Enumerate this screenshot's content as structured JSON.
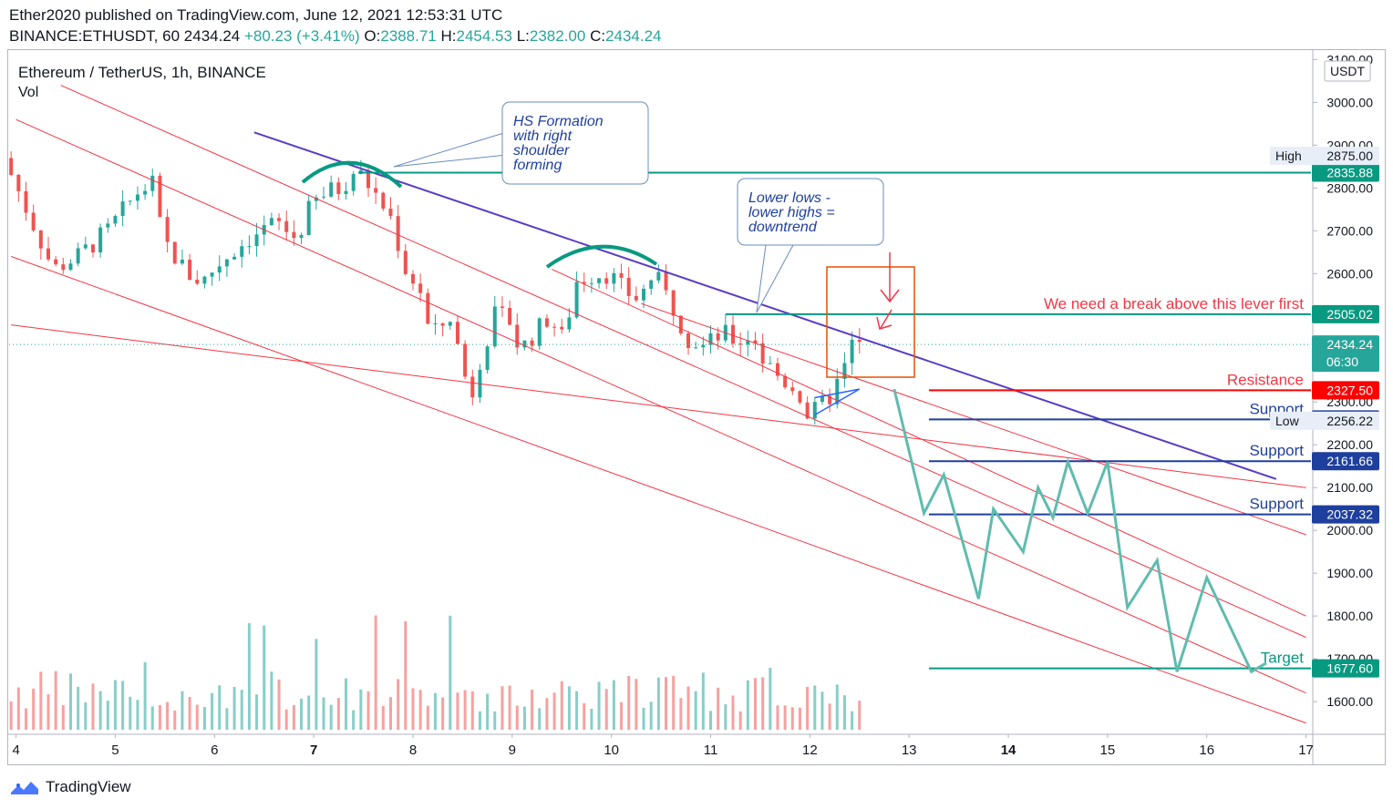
{
  "header": {
    "published": "Ether2020 published on TradingView.com, June 12, 2021 12:53:31 UTC",
    "symbol": "BINANCE:ETHUSDT, 60",
    "last": "2434.24",
    "change": "+80.23 (+3.41%)",
    "o_label": "O:",
    "o": "2388.71",
    "h_label": "H:",
    "h": "2454.53",
    "l_label": "L:",
    "l": "2382.00",
    "c_label": "C:",
    "c": "2434.24"
  },
  "legend": {
    "title": "Ethereum / TetherUS, 1h, BINANCE",
    "vol": "Vol"
  },
  "footer": {
    "brand": "TradingView"
  },
  "colors": {
    "up": "#26a69a",
    "down": "#ef5350",
    "trend": "#5b3cc4",
    "channel": "#f23645",
    "projection": "#5fbcae",
    "support": "#1e3f9e",
    "accent": "#089981"
  },
  "chart_data": {
    "type": "candlestick",
    "currency": "USDT",
    "x_ticks": [
      "4",
      "5",
      "6",
      "7",
      "8",
      "9",
      "10",
      "11",
      "12",
      "13",
      "14",
      "15",
      "16",
      "17"
    ],
    "x_tick_values": [
      4,
      5,
      6,
      7,
      8,
      9,
      10,
      11,
      12,
      13,
      14,
      15,
      16,
      17
    ],
    "y_ticks": [
      1600,
      1700,
      1800,
      1900,
      2000,
      2100,
      2200,
      2300,
      2400,
      2500,
      2600,
      2700,
      2800,
      2900,
      3000,
      3100
    ],
    "ylim": [
      1530,
      3120
    ],
    "xlim": [
      3.93,
      17.05
    ],
    "candle_path": [
      [
        3.95,
        2870
      ],
      [
        4.2,
        2740
      ],
      [
        4.45,
        2610
      ],
      [
        4.7,
        2640
      ],
      [
        5.0,
        2700
      ],
      [
        5.3,
        2790
      ],
      [
        5.45,
        2810
      ],
      [
        5.55,
        2680
      ],
      [
        5.8,
        2600
      ],
      [
        5.95,
        2580
      ],
      [
        6.1,
        2620
      ],
      [
        6.4,
        2680
      ],
      [
        6.7,
        2720
      ],
      [
        6.9,
        2680
      ],
      [
        7.05,
        2760
      ],
      [
        7.2,
        2790
      ],
      [
        7.35,
        2800
      ],
      [
        7.5,
        2845
      ],
      [
        7.65,
        2800
      ],
      [
        7.85,
        2730
      ],
      [
        8.0,
        2610
      ],
      [
        8.15,
        2560
      ],
      [
        8.25,
        2450
      ],
      [
        8.45,
        2500
      ],
      [
        8.6,
        2360
      ],
      [
        8.65,
        2300
      ],
      [
        8.75,
        2400
      ],
      [
        8.9,
        2500
      ],
      [
        9.05,
        2490
      ],
      [
        9.15,
        2420
      ],
      [
        9.3,
        2460
      ],
      [
        9.45,
        2500
      ],
      [
        9.6,
        2440
      ],
      [
        9.7,
        2580
      ],
      [
        9.9,
        2600
      ],
      [
        10.05,
        2600
      ],
      [
        10.2,
        2560
      ],
      [
        10.35,
        2540
      ],
      [
        10.5,
        2600
      ],
      [
        10.7,
        2520
      ],
      [
        10.85,
        2450
      ],
      [
        11.0,
        2430
      ],
      [
        11.2,
        2460
      ],
      [
        11.35,
        2440
      ],
      [
        11.5,
        2460
      ],
      [
        11.6,
        2400
      ],
      [
        11.8,
        2350
      ],
      [
        11.95,
        2330
      ],
      [
        12.05,
        2270
      ],
      [
        12.15,
        2280
      ],
      [
        12.3,
        2320
      ],
      [
        12.45,
        2390
      ],
      [
        12.5,
        2434
      ]
    ],
    "volume": {
      "max_label": "",
      "bars_seed": 7
    },
    "lines": [
      {
        "name": "downtrend",
        "kind": "trend",
        "points": [
          [
            6.4,
            2930
          ],
          [
            16.7,
            2120
          ]
        ]
      },
      {
        "name": "channel-top",
        "kind": "channel",
        "points": [
          [
            4.45,
            3040
          ],
          [
            17.0,
            1750
          ]
        ]
      },
      {
        "name": "channel-mid",
        "kind": "channel",
        "points": [
          [
            4.0,
            2960
          ],
          [
            17.0,
            1620
          ]
        ]
      },
      {
        "name": "channel-low",
        "kind": "channel",
        "points": [
          [
            3.95,
            2640
          ],
          [
            17.0,
            1550
          ]
        ]
      },
      {
        "name": "channel-inner",
        "kind": "channel",
        "points": [
          [
            9.4,
            2610
          ],
          [
            17.0,
            1800
          ]
        ]
      },
      {
        "name": "channel-inner2",
        "kind": "channel",
        "points": [
          [
            10.3,
            2530
          ],
          [
            17.0,
            1990
          ]
        ]
      },
      {
        "name": "wide-channel",
        "kind": "channel",
        "points": [
          [
            3.95,
            2480
          ],
          [
            17.0,
            2100
          ]
        ]
      }
    ],
    "horizontal_levels": [
      {
        "name": "level-2835",
        "value": 2835.88,
        "label": "2835.88",
        "color": "#089981",
        "x_start": 7.45,
        "annotation": ""
      },
      {
        "name": "level-2505",
        "value": 2505.02,
        "label": "2505.02",
        "color": "#089981",
        "x_start": 11.15,
        "annotation": "We need a break above this lever first",
        "annotation_color": "#f23645"
      },
      {
        "name": "level-2327",
        "value": 2327.5,
        "label": "2327.50",
        "color": "#ff0000",
        "x_start": 13.2,
        "annotation": "Resistance",
        "annotation_color": "#f23645"
      },
      {
        "name": "level-2259",
        "value": 2259.36,
        "label": "2259.36",
        "color": "#1e3f9e",
        "x_start": 13.2,
        "annotation": "Support",
        "annotation_color": "#1e3f9e"
      },
      {
        "name": "level-2161",
        "value": 2161.66,
        "label": "2161.66",
        "color": "#1e3f9e",
        "x_start": 13.2,
        "annotation": "Support",
        "annotation_color": "#1e3f9e"
      },
      {
        "name": "level-2037",
        "value": 2037.32,
        "label": "2037.32",
        "color": "#1e3f9e",
        "x_start": 13.2,
        "annotation": "Support",
        "annotation_color": "#1e3f9e"
      },
      {
        "name": "level-1677",
        "value": 1677.6,
        "label": "1677.60",
        "color": "#089981",
        "x_start": 13.2,
        "annotation": "Target",
        "annotation_color": "#089981"
      }
    ],
    "price_labels": [
      {
        "name": "high-label",
        "prefix": "High",
        "value": 2875.0,
        "label": "2875.00"
      },
      {
        "name": "low-label",
        "prefix": "Low",
        "value": 2256.22,
        "label": "2256.22"
      },
      {
        "name": "last-price",
        "value": 2434.24,
        "label": "2434.24",
        "sub": "06:30"
      }
    ],
    "projection": [
      [
        12.85,
        2330
      ],
      [
        13.15,
        2040
      ],
      [
        13.35,
        2130
      ],
      [
        13.7,
        1840
      ],
      [
        13.85,
        2050
      ],
      [
        14.15,
        1950
      ],
      [
        14.3,
        2100
      ],
      [
        14.45,
        2030
      ],
      [
        14.6,
        2160
      ],
      [
        14.8,
        2040
      ],
      [
        15.0,
        2160
      ],
      [
        15.2,
        1820
      ],
      [
        15.5,
        1930
      ],
      [
        15.7,
        1670
      ],
      [
        16.0,
        1890
      ],
      [
        16.45,
        1670
      ],
      [
        16.6,
        1690
      ]
    ],
    "annotations": [
      {
        "name": "hs-callout",
        "lines": [
          "HS Formation",
          "with right",
          "shoulder",
          "forming"
        ]
      },
      {
        "name": "downtrend-callout",
        "lines": [
          "Lower lows -",
          "lower highs =",
          "downtrend"
        ]
      }
    ]
  }
}
